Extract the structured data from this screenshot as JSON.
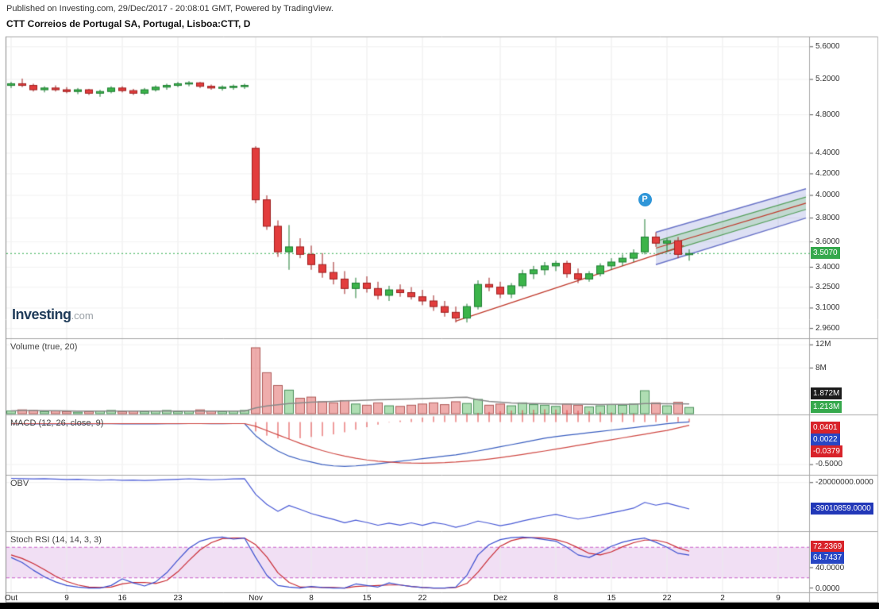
{
  "header": {
    "published": "Published on Investing.com, 29/Dec/2017 - 20:08:01 GMT, Powered by TradingView.",
    "title": "CTT Correios de Portugal SA, Portugal, Lisboa:CTT, D"
  },
  "watermark": {
    "brand": "Investing",
    "suffix": ".com"
  },
  "price_scale": {
    "ticks": [
      {
        "label": "5.6000",
        "value": 5.6
      },
      {
        "label": "5.2000",
        "value": 5.2
      },
      {
        "label": "4.8000",
        "value": 4.8
      },
      {
        "label": "4.4000",
        "value": 4.4
      },
      {
        "label": "4.2000",
        "value": 4.2
      },
      {
        "label": "4.0000",
        "value": 4.0
      },
      {
        "label": "3.8000",
        "value": 3.8
      },
      {
        "label": "3.6000",
        "value": 3.6
      },
      {
        "label": "3.4000",
        "value": 3.4
      },
      {
        "label": "3.2500",
        "value": 3.25
      },
      {
        "label": "3.1000",
        "value": 3.1
      },
      {
        "label": "2.9600",
        "value": 2.96
      }
    ],
    "badge": {
      "text": "3.5070",
      "value": 3.507,
      "color": "#35a84c"
    }
  },
  "panels": {
    "volume": {
      "title": "Volume (true, 20)",
      "ticks": [
        {
          "label": "12M",
          "value": 12
        },
        {
          "label": "8M",
          "value": 8
        }
      ],
      "badges": {
        "ma": {
          "text": "1.872M",
          "value": 1.872,
          "color": "#1b1b1b"
        },
        "current": {
          "text": "1.213M",
          "value": 1.213,
          "color": "#35a84c"
        }
      }
    },
    "macd": {
      "title": "MACD (12, 26, close, 9)",
      "ticks": [
        {
          "label": "-0.5000",
          "value": -0.5
        }
      ],
      "badges": {
        "histogram": {
          "text": "0.0401",
          "color": "#d8232a"
        },
        "macd": {
          "text": "0.0022",
          "color": "#2746c4"
        },
        "signal": {
          "text": "-0.0379",
          "color": "#d8232a"
        }
      }
    },
    "obv": {
      "title": "OBV",
      "ticks": [
        {
          "label": "-20000000.0000",
          "value": -20
        }
      ],
      "badge": {
        "text": "-39010859.0000",
        "value": -39.010859,
        "color": "#2238b8"
      }
    },
    "stoch": {
      "title": "Stoch RSI (14, 14, 3, 3)",
      "ticks": [
        {
          "label": "40.0000",
          "value": 40
        },
        {
          "label": "0.0000",
          "value": 0
        }
      ],
      "badges": {
        "d": {
          "text": "72.2369",
          "value": 72.2369,
          "color": "#d8232a"
        },
        "k": {
          "text": "64.7437",
          "value": 64.7437,
          "color": "#2746c4"
        }
      }
    }
  },
  "time_scale": {
    "ticks": [
      {
        "label": "Out",
        "index": 0
      },
      {
        "label": "9",
        "index": 5
      },
      {
        "label": "16",
        "index": 10
      },
      {
        "label": "23",
        "index": 15
      },
      {
        "label": "Nov",
        "index": 22
      },
      {
        "label": "8",
        "index": 27
      },
      {
        "label": "15",
        "index": 32
      },
      {
        "label": "22",
        "index": 37
      },
      {
        "label": "Dez",
        "index": 44
      },
      {
        "label": "8",
        "index": 49
      },
      {
        "label": "15",
        "index": 54
      },
      {
        "label": "22",
        "index": 59
      },
      {
        "label": "2",
        "index": 64
      },
      {
        "label": "9",
        "index": 69
      }
    ]
  },
  "chart_data": [
    {
      "type": "candlestick",
      "name": "CTT daily price",
      "scale": "log",
      "ylim": [
        2.895,
        5.72
      ],
      "up_color": "#3cb44a",
      "up_border": "#1d7d32",
      "down_color": "#e23d3d",
      "down_border": "#9e1f1f",
      "last_price": 3.507,
      "last_price_line_color": "#2fae4e",
      "ohlc": [
        [
          5.13,
          5.17,
          5.1,
          5.15
        ],
        [
          5.15,
          5.21,
          5.11,
          5.13
        ],
        [
          5.13,
          5.15,
          5.06,
          5.08
        ],
        [
          5.08,
          5.12,
          5.05,
          5.1
        ],
        [
          5.1,
          5.13,
          5.06,
          5.08
        ],
        [
          5.08,
          5.11,
          5.04,
          5.06
        ],
        [
          5.06,
          5.1,
          5.03,
          5.08
        ],
        [
          5.08,
          5.09,
          5.02,
          5.04
        ],
        [
          5.04,
          5.08,
          5.0,
          5.06
        ],
        [
          5.06,
          5.12,
          5.04,
          5.1
        ],
        [
          5.1,
          5.12,
          5.05,
          5.07
        ],
        [
          5.07,
          5.09,
          5.02,
          5.04
        ],
        [
          5.04,
          5.1,
          5.02,
          5.08
        ],
        [
          5.08,
          5.13,
          5.06,
          5.11
        ],
        [
          5.11,
          5.15,
          5.08,
          5.13
        ],
        [
          5.13,
          5.17,
          5.11,
          5.15
        ],
        [
          5.15,
          5.18,
          5.12,
          5.16
        ],
        [
          5.16,
          5.17,
          5.1,
          5.12
        ],
        [
          5.12,
          5.14,
          5.08,
          5.1
        ],
        [
          5.1,
          5.13,
          5.07,
          5.11
        ],
        [
          5.11,
          5.14,
          5.08,
          5.12
        ],
        [
          5.12,
          5.15,
          5.09,
          5.13
        ],
        [
          4.45,
          4.47,
          3.93,
          3.96
        ],
        [
          3.96,
          4.0,
          3.7,
          3.73
        ],
        [
          3.73,
          3.78,
          3.48,
          3.52
        ],
        [
          3.52,
          3.74,
          3.38,
          3.56
        ],
        [
          3.56,
          3.63,
          3.47,
          3.5
        ],
        [
          3.5,
          3.57,
          3.38,
          3.42
        ],
        [
          3.42,
          3.51,
          3.32,
          3.36
        ],
        [
          3.36,
          3.44,
          3.27,
          3.31
        ],
        [
          3.31,
          3.37,
          3.2,
          3.24
        ],
        [
          3.24,
          3.32,
          3.17,
          3.28
        ],
        [
          3.28,
          3.33,
          3.21,
          3.24
        ],
        [
          3.24,
          3.29,
          3.16,
          3.19
        ],
        [
          3.19,
          3.26,
          3.15,
          3.23
        ],
        [
          3.23,
          3.27,
          3.18,
          3.21
        ],
        [
          3.21,
          3.25,
          3.16,
          3.18
        ],
        [
          3.18,
          3.23,
          3.12,
          3.15
        ],
        [
          3.15,
          3.19,
          3.08,
          3.11
        ],
        [
          3.11,
          3.15,
          3.04,
          3.07
        ],
        [
          3.07,
          3.11,
          3.0,
          3.03
        ],
        [
          3.03,
          3.13,
          3.0,
          3.11
        ],
        [
          3.11,
          3.3,
          3.09,
          3.27
        ],
        [
          3.27,
          3.32,
          3.22,
          3.25
        ],
        [
          3.25,
          3.29,
          3.17,
          3.2
        ],
        [
          3.2,
          3.28,
          3.17,
          3.26
        ],
        [
          3.26,
          3.38,
          3.24,
          3.35
        ],
        [
          3.35,
          3.41,
          3.31,
          3.38
        ],
        [
          3.38,
          3.44,
          3.34,
          3.41
        ],
        [
          3.41,
          3.45,
          3.37,
          3.43
        ],
        [
          3.43,
          3.45,
          3.32,
          3.35
        ],
        [
          3.35,
          3.39,
          3.28,
          3.31
        ],
        [
          3.31,
          3.37,
          3.29,
          3.35
        ],
        [
          3.35,
          3.43,
          3.33,
          3.41
        ],
        [
          3.41,
          3.47,
          3.38,
          3.44
        ],
        [
          3.44,
          3.5,
          3.41,
          3.47
        ],
        [
          3.47,
          3.54,
          3.44,
          3.51
        ],
        [
          3.52,
          3.79,
          3.5,
          3.64
        ],
        [
          3.64,
          3.68,
          3.56,
          3.59
        ],
        [
          3.59,
          3.63,
          3.52,
          3.61
        ],
        [
          3.61,
          3.64,
          3.47,
          3.5
        ],
        [
          3.5,
          3.54,
          3.45,
          3.507
        ]
      ],
      "trendline": {
        "i0": 40,
        "p0": 3.01,
        "i1": 60.5,
        "p1": 3.57,
        "color": "#c0392b"
      },
      "channel": {
        "i0": 58,
        "i1": 71.5,
        "median0": 3.55,
        "median1": 3.93,
        "inner_offset": 0.055,
        "outer_offset": 0.13,
        "median_color": "#c0392b",
        "inner_line_color": "#56a05c",
        "outer_line_color": "#6a74c8",
        "inner_fill": "rgba(140,200,140,0.35)",
        "outer_fill": "rgba(120,130,210,0.25)"
      },
      "marker": {
        "index": 57,
        "price": 3.96,
        "label": "P",
        "color": "#2f96d8"
      }
    },
    {
      "type": "bar",
      "name": "Volume",
      "unit": "millions",
      "ylim": [
        0,
        13
      ],
      "ma_period": 20,
      "ma_color": "#8a8a8a",
      "up_fill": "rgba(96,189,104,0.5)",
      "up_border": "rgba(40,120,60,0.8)",
      "down_fill": "rgba(223,92,90,0.5)",
      "down_border": "rgba(155,60,58,0.8)",
      "values": [
        0.6,
        0.8,
        0.7,
        0.5,
        0.6,
        0.5,
        0.4,
        0.5,
        0.6,
        0.7,
        0.5,
        0.6,
        0.5,
        0.6,
        0.7,
        0.5,
        0.6,
        0.8,
        0.6,
        0.5,
        0.6,
        0.7,
        11.5,
        7.2,
        5,
        4.2,
        2.8,
        3,
        2.2,
        2,
        2.4,
        1.8,
        1.6,
        2,
        1.5,
        1.4,
        1.6,
        1.8,
        2,
        1.7,
        2.2,
        1.9,
        2.6,
        1.6,
        1.8,
        1.5,
        2,
        1.7,
        1.6,
        1.4,
        1.8,
        1.6,
        1.3,
        1.5,
        1.7,
        1.6,
        1.8,
        4.1,
        2,
        1.5,
        2.1,
        1.213
      ]
    },
    {
      "type": "line",
      "name": "MACD",
      "ylim": [
        -0.62,
        0.08
      ],
      "macd_color": "#3b5fc0",
      "signal_color": "#d04a45",
      "hist_color": "#e03c3c",
      "macd": [
        -0.02,
        -0.02,
        -0.021,
        -0.021,
        -0.022,
        -0.022,
        -0.021,
        -0.021,
        -0.02,
        -0.02,
        -0.021,
        -0.021,
        -0.022,
        -0.021,
        -0.02,
        -0.019,
        -0.018,
        -0.018,
        -0.019,
        -0.019,
        -0.018,
        -0.018,
        -0.16,
        -0.26,
        -0.34,
        -0.4,
        -0.44,
        -0.47,
        -0.5,
        -0.515,
        -0.52,
        -0.515,
        -0.505,
        -0.49,
        -0.475,
        -0.46,
        -0.445,
        -0.43,
        -0.415,
        -0.4,
        -0.385,
        -0.365,
        -0.34,
        -0.315,
        -0.29,
        -0.265,
        -0.24,
        -0.215,
        -0.19,
        -0.17,
        -0.155,
        -0.14,
        -0.125,
        -0.11,
        -0.095,
        -0.08,
        -0.065,
        -0.05,
        -0.035,
        -0.02,
        -0.008,
        0.0022
      ],
      "signal": [
        -0.018,
        -0.018,
        -0.018,
        -0.018,
        -0.018,
        -0.018,
        -0.018,
        -0.018,
        -0.018,
        -0.018,
        -0.018,
        -0.018,
        -0.018,
        -0.018,
        -0.018,
        -0.018,
        -0.018,
        -0.018,
        -0.018,
        -0.018,
        -0.018,
        -0.018,
        -0.05,
        -0.1,
        -0.15,
        -0.2,
        -0.25,
        -0.295,
        -0.335,
        -0.37,
        -0.4,
        -0.425,
        -0.445,
        -0.46,
        -0.47,
        -0.478,
        -0.482,
        -0.483,
        -0.481,
        -0.477,
        -0.47,
        -0.46,
        -0.448,
        -0.434,
        -0.418,
        -0.4,
        -0.38,
        -0.36,
        -0.34,
        -0.318,
        -0.296,
        -0.274,
        -0.252,
        -0.23,
        -0.208,
        -0.186,
        -0.164,
        -0.142,
        -0.12,
        -0.098,
        -0.068,
        -0.0379
      ]
    },
    {
      "type": "line",
      "name": "OBV",
      "unit": "millions",
      "ylim": [
        -55,
        -15
      ],
      "color": "#4a5bd6",
      "values": [
        -17,
        -17.2,
        -17.4,
        -17.2,
        -17.5,
        -17.8,
        -17.6,
        -18,
        -18.3,
        -18,
        -18.4,
        -18.2,
        -18.5,
        -18.2,
        -17.9,
        -17.6,
        -17.3,
        -17.6,
        -18,
        -17.7,
        -17.4,
        -17.2,
        -28.5,
        -35.7,
        -40.7,
        -36.5,
        -39.3,
        -42.3,
        -44.5,
        -46.5,
        -48.9,
        -47.1,
        -48.7,
        -50.7,
        -49.2,
        -50.6,
        -49,
        -50.8,
        -48.8,
        -50,
        -52.2,
        -50.3,
        -47.7,
        -49.3,
        -51.1,
        -49.6,
        -47.6,
        -45.9,
        -44.3,
        -42.9,
        -44.7,
        -46.3,
        -45,
        -43.5,
        -41.8,
        -40.2,
        -38.4,
        -34.3,
        -36.3,
        -34.8,
        -36.9,
        -39.010859
      ]
    },
    {
      "type": "line",
      "name": "Stoch RSI",
      "ylim": [
        -10,
        110
      ],
      "k_color": "#3b4fd0",
      "d_color": "#c92a33",
      "band": [
        20,
        80
      ],
      "band_fill": "rgba(205,140,215,0.28)",
      "band_line_color": "#c95fc9",
      "k": [
        60,
        50,
        35,
        22,
        12,
        5,
        2,
        0,
        0,
        5,
        18,
        10,
        4,
        12,
        30,
        55,
        78,
        92,
        98,
        100,
        96,
        98,
        60,
        25,
        5,
        2,
        0,
        3,
        1,
        0,
        0,
        8,
        5,
        2,
        10,
        6,
        3,
        1,
        0,
        0,
        2,
        25,
        65,
        85,
        95,
        99,
        100,
        98,
        95,
        92,
        80,
        65,
        60,
        70,
        82,
        90,
        95,
        98,
        90,
        80,
        68,
        64.7437
      ],
      "d": [
        65,
        58,
        48,
        36,
        23,
        13,
        6,
        2,
        1,
        2,
        8,
        11,
        11,
        9,
        15,
        32,
        54,
        75,
        89,
        97,
        98,
        98,
        85,
        61,
        30,
        11,
        2,
        2,
        1,
        1,
        0,
        3,
        4,
        5,
        6,
        6,
        3,
        1,
        0,
        0,
        1,
        9,
        31,
        58,
        82,
        93,
        98,
        99,
        98,
        95,
        89,
        79,
        68,
        65,
        71,
        81,
        89,
        94,
        94,
        89,
        79,
        72.2369
      ]
    }
  ]
}
